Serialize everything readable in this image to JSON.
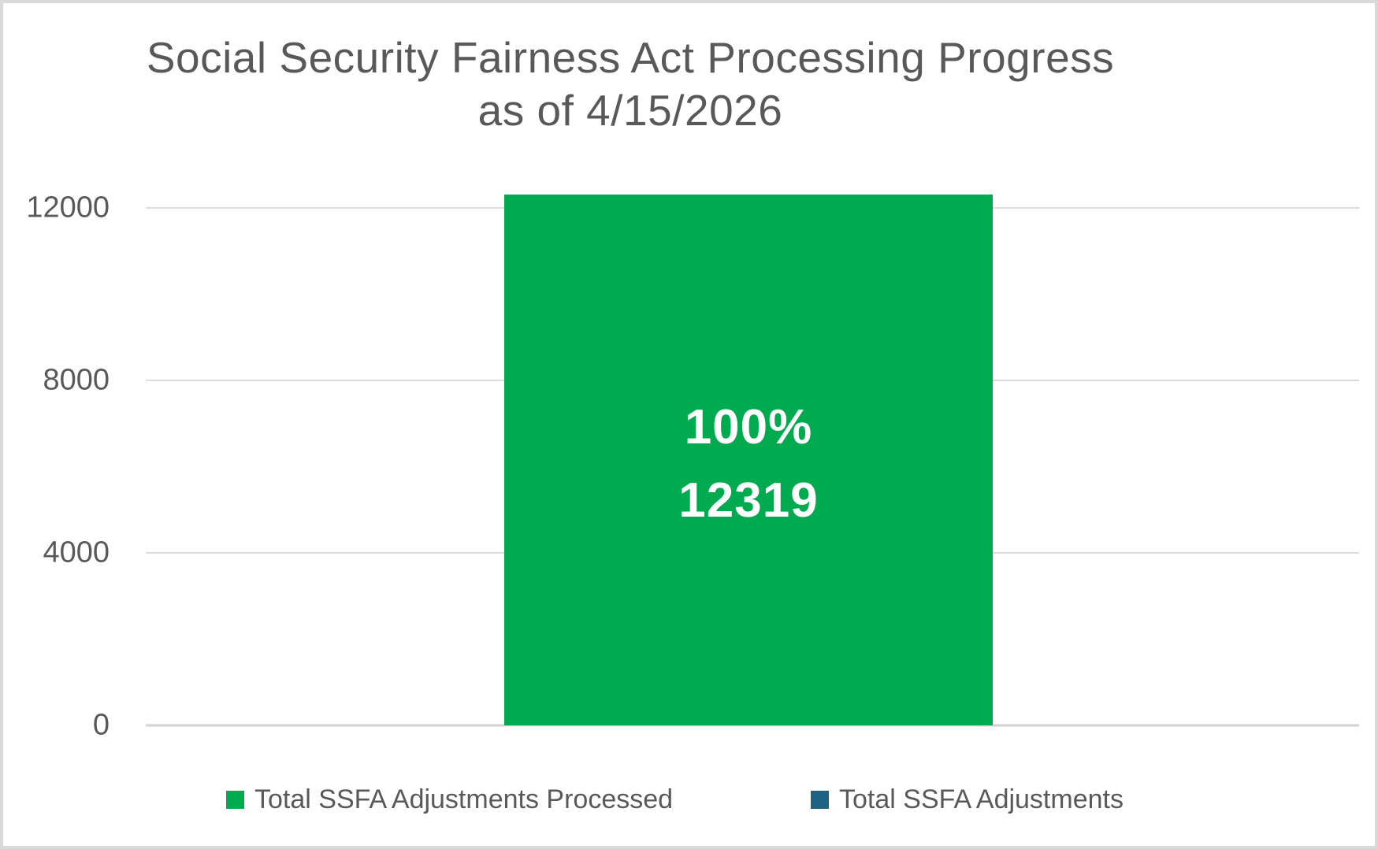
{
  "chart_data": {
    "type": "bar",
    "title": "Social Security Fairness Act Processing Progress as of 4/15/2026",
    "title_line1": "Social Security Fairness Act Processing Progress",
    "title_line2": "as of 4/15/2026",
    "categories": [
      ""
    ],
    "series": [
      {
        "name": "Total SSFA Adjustments Processed",
        "values": [
          12319
        ],
        "color": "#00AB50"
      },
      {
        "name": "Total SSFA Adjustments",
        "values": [
          12319
        ],
        "color": "#1F6382"
      }
    ],
    "bar_label_lines": [
      "100%",
      "12319"
    ],
    "percent_processed": "100%",
    "total_processed": 12319,
    "yticks": [
      0,
      4000,
      8000,
      12000
    ],
    "ylim": [
      0,
      12319
    ],
    "xlabel": "",
    "ylabel": "",
    "grid": true,
    "legend_position": "bottom",
    "bar_layout": "overlapped"
  },
  "colors": {
    "title_text": "#595959",
    "axis_text": "#595959",
    "legend_text": "#595959",
    "gridline": "#DCDCDC",
    "axis_line": "#D2D2D2",
    "canvas_border": "#D9D9D9",
    "bar_label_text": "#FFFFFF",
    "background": "#FFFFFF"
  }
}
